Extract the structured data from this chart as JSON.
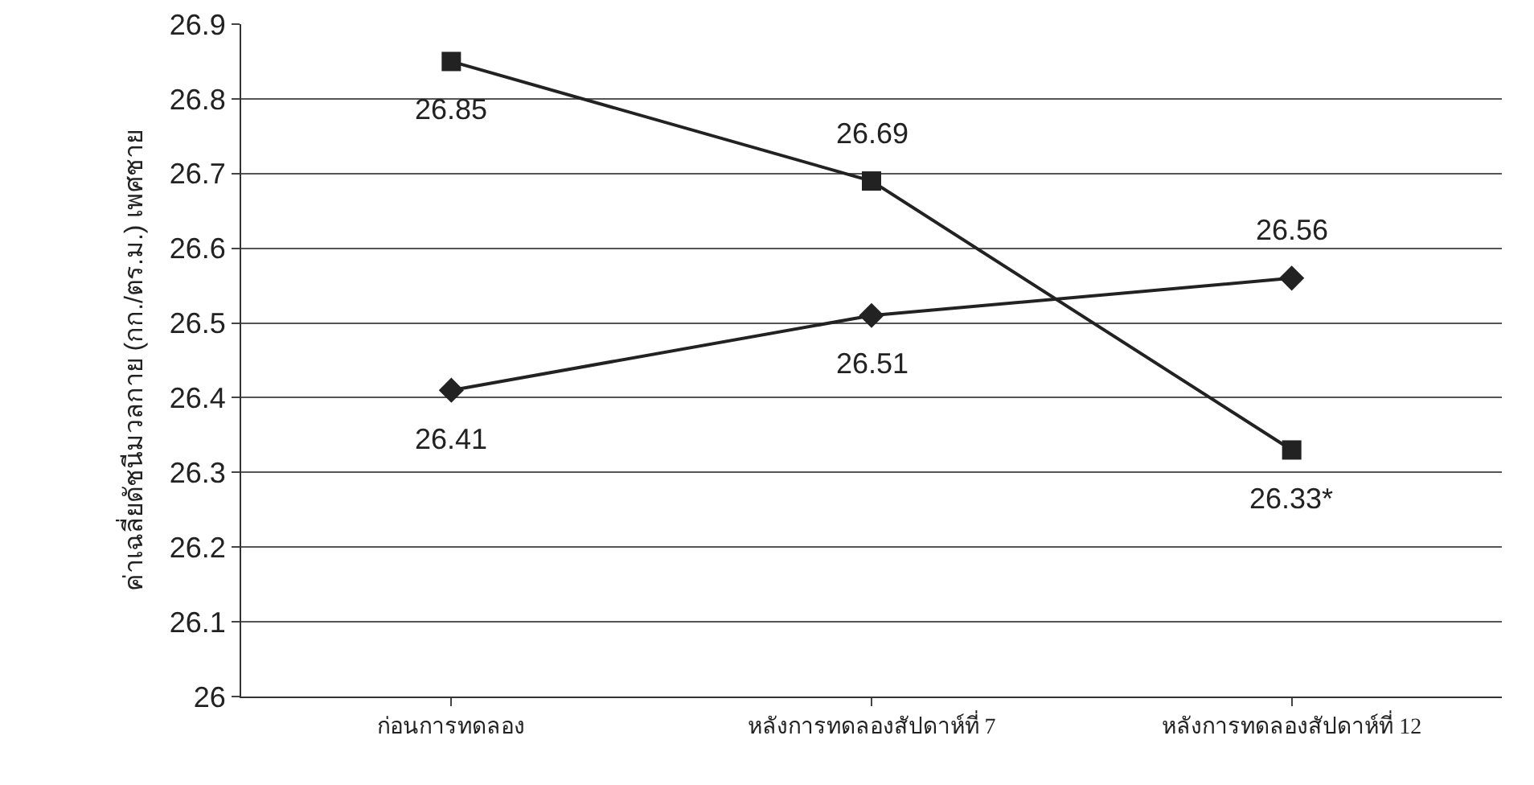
{
  "chart_data": {
    "type": "line",
    "ylabel": "ค่าเฉลี่ยดัชนีมวลกาย (กก./ตร.ม.) เพศชาย",
    "categories": [
      "ก่อนการทดลอง",
      "หลังการทดลองสัปดาห์ที่ 7",
      "หลังการทดลองสัปดาห์ที่ 12"
    ],
    "series": [
      {
        "color": "#222222",
        "marker": "square",
        "values": [
          26.85,
          26.69,
          26.33
        ],
        "value_labels": [
          "26.85",
          "26.69",
          "26.33*"
        ]
      },
      {
        "color": "#222222",
        "marker": "diamond",
        "values": [
          26.41,
          26.51,
          26.56
        ],
        "value_labels": [
          "26.41",
          "26.51",
          "26.56"
        ]
      }
    ],
    "ylim": [
      26,
      26.9
    ],
    "yticks": [
      26,
      26.1,
      26.2,
      26.3,
      26.4,
      26.5,
      26.6,
      26.7,
      26.8,
      26.9
    ],
    "grid": "y"
  }
}
